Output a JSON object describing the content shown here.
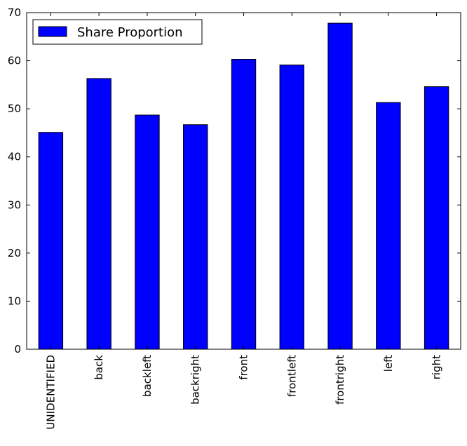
{
  "chart_data": {
    "type": "bar",
    "categories": [
      "UNIDENTIFIED",
      "back",
      "backleft",
      "backright",
      "front",
      "frontleft",
      "frontright",
      "left",
      "right"
    ],
    "series": [
      {
        "name": "Share Proportion",
        "values": [
          45.1,
          56.3,
          48.7,
          46.7,
          60.3,
          59.1,
          67.8,
          51.3,
          54.6
        ]
      }
    ],
    "yticks": [
      "0",
      "10",
      "20",
      "30",
      "40",
      "50",
      "60",
      "70"
    ],
    "ylim": [
      0,
      70
    ],
    "title": "",
    "xlabel": "",
    "ylabel": "",
    "grid": false,
    "legend_position": "top-left",
    "colors": {
      "bar": "#0000ff",
      "edge": "#000000",
      "background": "#ffffff"
    }
  }
}
